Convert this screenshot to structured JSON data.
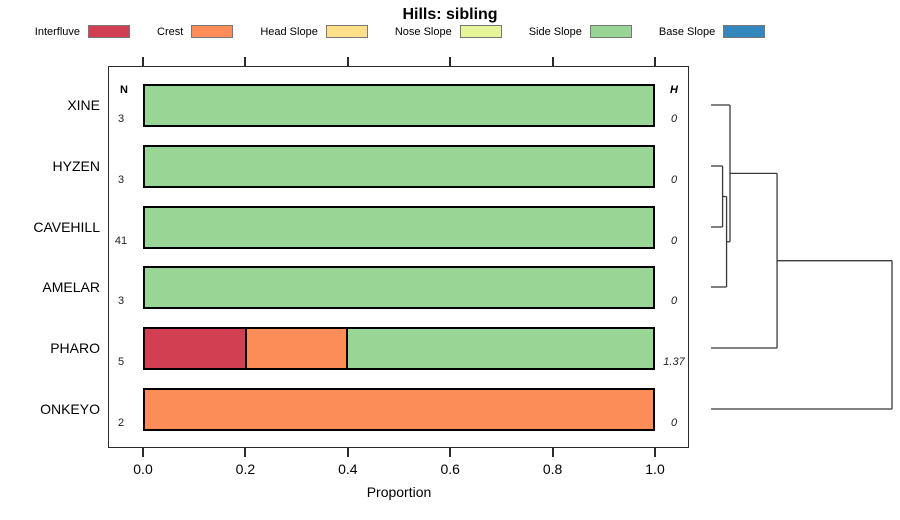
{
  "columns": {
    "n_header": "N",
    "h_header": "H"
  },
  "chart_data": {
    "type": "bar",
    "orientation": "horizontal_stacked",
    "title": "Hills: sibling",
    "xlabel": "Proportion",
    "xlim": [
      0,
      1
    ],
    "xticks": [
      0,
      0.2,
      0.4,
      0.6,
      0.8,
      1.0
    ],
    "xtick_labels": [
      "0.0",
      "0.2",
      "0.4",
      "0.6",
      "0.8",
      "1.0"
    ],
    "grid": false,
    "legend_position": "top",
    "classes": [
      {
        "name": "Interfluve",
        "color": "#D23F53"
      },
      {
        "name": "Crest",
        "color": "#FC8D59"
      },
      {
        "name": "Head Slope",
        "color": "#FEE08B"
      },
      {
        "name": "Nose Slope",
        "color": "#E6F598"
      },
      {
        "name": "Side Slope",
        "color": "#99D594"
      },
      {
        "name": "Base Slope",
        "color": "#3288BD"
      }
    ],
    "rows": [
      {
        "label": "XINE",
        "n": "3",
        "h": "0",
        "segments": [
          {
            "class": "Side Slope",
            "value": 1.0
          }
        ]
      },
      {
        "label": "HYZEN",
        "n": "3",
        "h": "0",
        "segments": [
          {
            "class": "Side Slope",
            "value": 1.0
          }
        ]
      },
      {
        "label": "CAVEHILL",
        "n": "41",
        "h": "0",
        "segments": [
          {
            "class": "Side Slope",
            "value": 1.0
          }
        ]
      },
      {
        "label": "AMELAR",
        "n": "3",
        "h": "0",
        "segments": [
          {
            "class": "Side Slope",
            "value": 1.0
          }
        ]
      },
      {
        "label": "PHARO",
        "n": "5",
        "h": "1.37",
        "segments": [
          {
            "class": "Interfluve",
            "value": 0.2
          },
          {
            "class": "Crest",
            "value": 0.2
          },
          {
            "class": "Side Slope",
            "value": 0.6
          }
        ]
      },
      {
        "label": "ONKEYO",
        "n": "2",
        "h": "0",
        "segments": [
          {
            "class": "Crest",
            "value": 1.0
          }
        ]
      }
    ],
    "dendrogram": {
      "leaves": [
        "XINE",
        "HYZEN",
        "CAVEHILL",
        "AMELAR",
        "PHARO",
        "ONKEYO"
      ],
      "merges": [
        {
          "a": "HYZEN",
          "b": "CAVEHILL",
          "height": 0.064
        },
        {
          "a": "#0",
          "b": "AMELAR",
          "height": 0.086
        },
        {
          "a": "XINE",
          "b": "#1",
          "height": 0.105
        },
        {
          "a": "#2",
          "b": "PHARO",
          "height": 0.365
        },
        {
          "a": "#3",
          "b": "ONKEYO",
          "height": 1.0
        }
      ]
    }
  }
}
